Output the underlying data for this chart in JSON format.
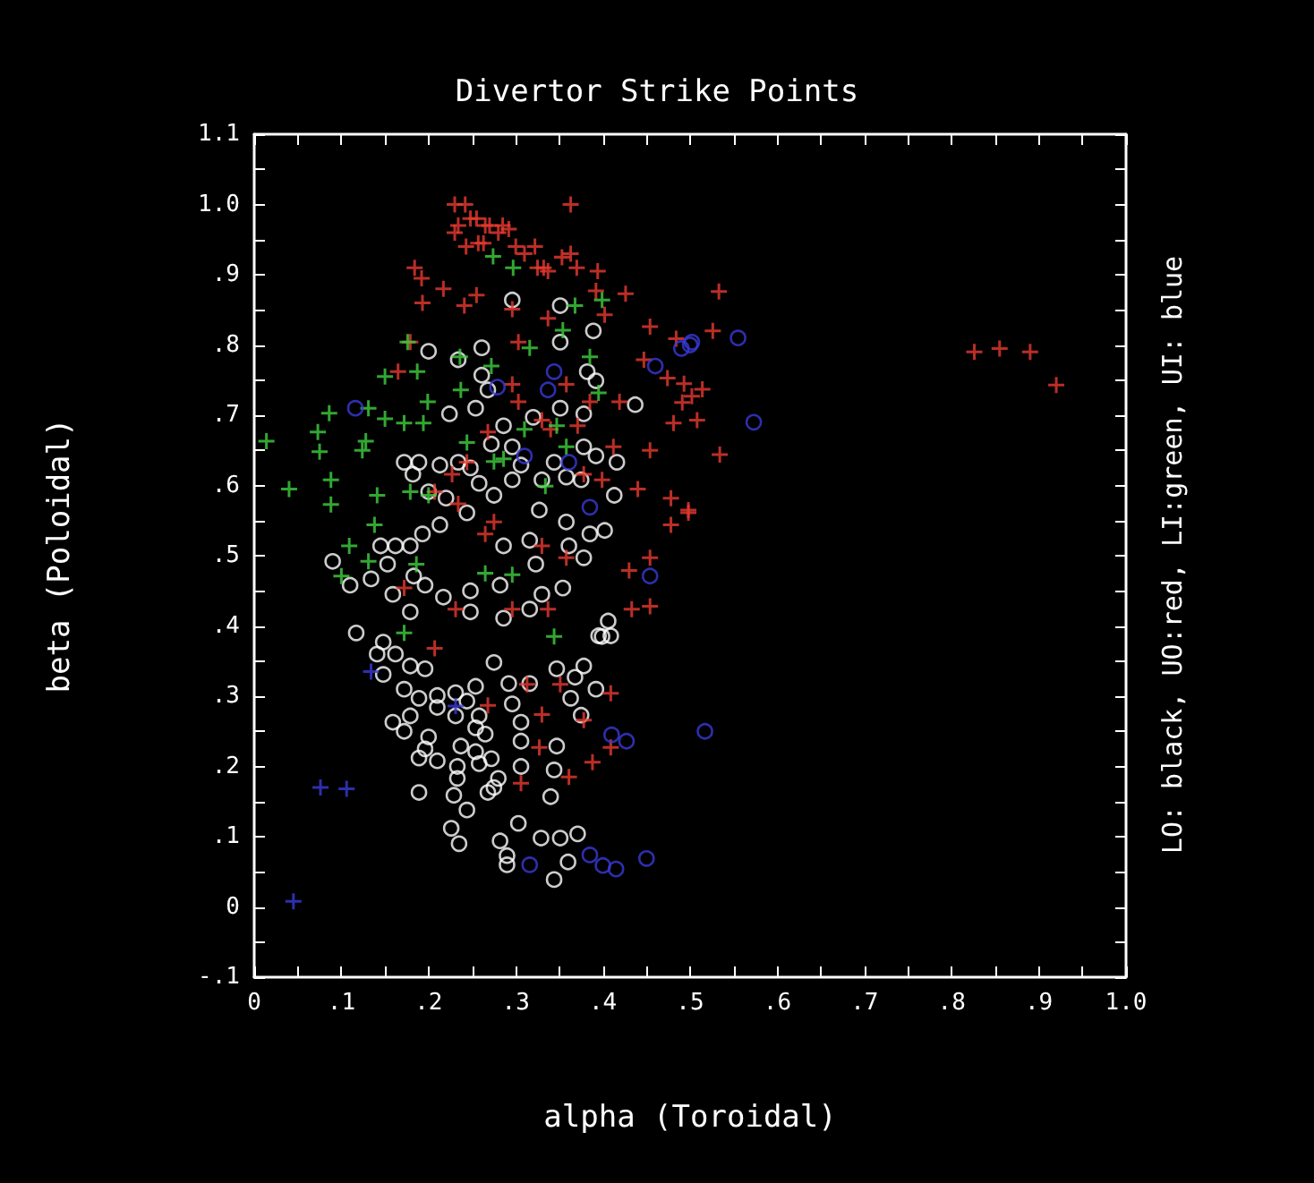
{
  "chart_data": {
    "type": "scatter",
    "title": "Divertor Strike Points",
    "xlabel": "alpha (Toroidal)",
    "ylabel": "beta (Poloidal)",
    "annotations": [
      "LO: black, UO:red, LI:green, UI: blue"
    ],
    "xlim": [
      0,
      1.0
    ],
    "ylim": [
      -0.1,
      1.1
    ],
    "xticks": [
      0,
      {
        "value": 0.05,
        "label": null
      },
      {
        "value": 0.1,
        "label": ".1"
      },
      {
        "value": 0.15,
        "label": null
      },
      {
        "value": 0.2,
        "label": ".2"
      },
      {
        "value": 0.25,
        "label": null
      },
      {
        "value": 0.3,
        "label": ".3"
      },
      {
        "value": 0.35,
        "label": null
      },
      {
        "value": 0.4,
        "label": ".4"
      },
      {
        "value": 0.45,
        "label": null
      },
      {
        "value": 0.5,
        "label": ".5"
      },
      {
        "value": 0.55,
        "label": null
      },
      {
        "value": 0.6,
        "label": ".6"
      },
      {
        "value": 0.65,
        "label": null
      },
      {
        "value": 0.7,
        "label": ".7"
      },
      {
        "value": 0.75,
        "label": null
      },
      {
        "value": 0.8,
        "label": ".8"
      },
      {
        "value": 0.85,
        "label": null
      },
      {
        "value": 0.9,
        "label": ".9"
      },
      {
        "value": 0.95,
        "label": null
      },
      {
        "value": 1.0,
        "label": "1.0"
      }
    ],
    "yticks": [
      {
        "value": -0.1,
        "label": "-.1"
      },
      {
        "value": -0.05,
        "label": null
      },
      0,
      {
        "value": 0.05,
        "label": null
      },
      {
        "value": 0.1,
        "label": ".1"
      },
      {
        "value": 0.15,
        "label": null
      },
      {
        "value": 0.2,
        "label": ".2"
      },
      {
        "value": 0.25,
        "label": null
      },
      {
        "value": 0.3,
        "label": ".3"
      },
      {
        "value": 0.35,
        "label": null
      },
      {
        "value": 0.4,
        "label": ".4"
      },
      {
        "value": 0.45,
        "label": null
      },
      {
        "value": 0.5,
        "label": ".5"
      },
      {
        "value": 0.55,
        "label": null
      },
      {
        "value": 0.6,
        "label": ".6"
      },
      {
        "value": 0.65,
        "label": null
      },
      {
        "value": 0.7,
        "label": ".7"
      },
      {
        "value": 0.75,
        "label": null
      },
      {
        "value": 0.8,
        "label": ".8"
      },
      {
        "value": 0.85,
        "label": null
      },
      {
        "value": 0.9,
        "label": ".9"
      },
      {
        "value": 0.95,
        "label": null
      },
      {
        "value": 1.0,
        "label": "1.0"
      },
      {
        "value": 1.05,
        "label": null
      },
      {
        "value": 1.1,
        "label": "1.1"
      }
    ],
    "series": [
      {
        "color": "#ffffff",
        "marker": "circle",
        "x": [
          0.2,
          0.261,
          0.296,
          0.351,
          0.351,
          0.234,
          0.261,
          0.268,
          0.254,
          0.224,
          0.286,
          0.32,
          0.351,
          0.382,
          0.392,
          0.437,
          0.378,
          0.272,
          0.296,
          0.378,
          0.416,
          0.172,
          0.189,
          0.213,
          0.234,
          0.182,
          0.248,
          0.258,
          0.296,
          0.33,
          0.358,
          0.375,
          0.392,
          0.413,
          0.2,
          0.22,
          0.244,
          0.213,
          0.193,
          0.179,
          0.145,
          0.162,
          0.09,
          0.11,
          0.134,
          0.153,
          0.183,
          0.196,
          0.159,
          0.217,
          0.248,
          0.286,
          0.316,
          0.327,
          0.358,
          0.385,
          0.402,
          0.378,
          0.354,
          0.33,
          0.282,
          0.248,
          0.286,
          0.316,
          0.179,
          0.117,
          0.406,
          0.399,
          0.275,
          0.306,
          0.344,
          0.361,
          0.323,
          0.148,
          0.141,
          0.162,
          0.179,
          0.148,
          0.196,
          0.172,
          0.189,
          0.21,
          0.231,
          0.244,
          0.231,
          0.21,
          0.159,
          0.179,
          0.172,
          0.2,
          0.196,
          0.189,
          0.21,
          0.237,
          0.254,
          0.272,
          0.258,
          0.254,
          0.265,
          0.258,
          0.233,
          0.233,
          0.189,
          0.229,
          0.275,
          0.268,
          0.28,
          0.244,
          0.226,
          0.235,
          0.254,
          0.275,
          0.292,
          0.316,
          0.296,
          0.306,
          0.306,
          0.306,
          0.347,
          0.344,
          0.34,
          0.303,
          0.282,
          0.29,
          0.29,
          0.329,
          0.351,
          0.371,
          0.36,
          0.344,
          0.363,
          0.375,
          0.392,
          0.368,
          0.378,
          0.347,
          0.395,
          0.409,
          0.389
        ],
        "values": [
          0.791,
          0.796,
          0.864,
          0.856,
          0.804,
          0.779,
          0.757,
          0.736,
          0.71,
          0.702,
          0.685,
          0.697,
          0.71,
          0.762,
          0.749,
          0.715,
          0.702,
          0.659,
          0.655,
          0.655,
          0.633,
          0.633,
          0.633,
          0.629,
          0.633,
          0.616,
          0.625,
          0.603,
          0.608,
          0.608,
          0.612,
          0.608,
          0.642,
          0.586,
          0.591,
          0.582,
          0.561,
          0.544,
          0.531,
          0.514,
          0.514,
          0.514,
          0.492,
          0.458,
          0.467,
          0.488,
          0.471,
          0.458,
          0.445,
          0.441,
          0.45,
          0.514,
          0.522,
          0.565,
          0.548,
          0.531,
          0.536,
          0.497,
          0.454,
          0.445,
          0.458,
          0.42,
          0.411,
          0.424,
          0.42,
          0.39,
          0.407,
          0.385,
          0.586,
          0.629,
          0.633,
          0.514,
          0.488,
          0.377,
          0.36,
          0.36,
          0.343,
          0.331,
          0.339,
          0.31,
          0.297,
          0.301,
          0.305,
          0.293,
          0.272,
          0.284,
          0.263,
          0.272,
          0.25,
          0.242,
          0.225,
          0.212,
          0.208,
          0.229,
          0.221,
          0.211,
          0.204,
          0.255,
          0.246,
          0.272,
          0.2,
          0.183,
          0.163,
          0.159,
          0.17,
          0.163,
          0.183,
          0.138,
          0.112,
          0.09,
          0.314,
          0.348,
          0.318,
          0.318,
          0.289,
          0.263,
          0.236,
          0.2,
          0.229,
          0.195,
          0.157,
          0.119,
          0.094,
          0.073,
          0.06,
          0.098,
          0.098,
          0.104,
          0.064,
          0.039,
          0.297,
          0.273,
          0.31,
          0.327,
          0.343,
          0.339,
          0.386,
          0.386,
          0.82
        ]
      },
      {
        "color": "#e8392f",
        "marker": "cross",
        "x": [
          0.193,
          0.217,
          0.255,
          0.179,
          0.241,
          0.296,
          0.303,
          0.337,
          0.392,
          0.402,
          0.426,
          0.454,
          0.484,
          0.447,
          0.474,
          0.502,
          0.481,
          0.454,
          0.478,
          0.498,
          0.44,
          0.478,
          0.454,
          0.43,
          0.454,
          0.433,
          0.399,
          0.371,
          0.412,
          0.34,
          0.296,
          0.268,
          0.244,
          0.227,
          0.165,
          0.207,
          0.265,
          0.275,
          0.234,
          0.33,
          0.358,
          0.172,
          0.231,
          0.337,
          0.296,
          0.378,
          0.385,
          0.33,
          0.303,
          0.358,
          0.419,
          0.207,
          0.268,
          0.306,
          0.327,
          0.33,
          0.388,
          0.409,
          0.361,
          0.378,
          0.409,
          0.351,
          0.313,
          0.23,
          0.242,
          0.248,
          0.255,
          0.23,
          0.234,
          0.265,
          0.27,
          0.28,
          0.285,
          0.292,
          0.257,
          0.263,
          0.243,
          0.3,
          0.31,
          0.322,
          0.325,
          0.332,
          0.337,
          0.353,
          0.363,
          0.363,
          0.37,
          0.394,
          0.184,
          0.192,
          0.526,
          0.493,
          0.514,
          0.491,
          0.508,
          0.534,
          0.498,
          0.533,
          0.826,
          0.855,
          0.89,
          0.92
        ],
        "values": [
          0.86,
          0.88,
          0.871,
          0.804,
          0.856,
          0.851,
          0.804,
          0.838,
          0.877,
          0.843,
          0.873,
          0.826,
          0.809,
          0.779,
          0.753,
          0.727,
          0.689,
          0.65,
          0.582,
          0.565,
          0.595,
          0.544,
          0.497,
          0.479,
          0.428,
          0.424,
          0.608,
          0.685,
          0.655,
          0.68,
          0.744,
          0.676,
          0.633,
          0.616,
          0.762,
          0.591,
          0.531,
          0.548,
          0.574,
          0.514,
          0.497,
          0.454,
          0.424,
          0.424,
          0.424,
          0.616,
          0.719,
          0.693,
          0.719,
          0.744,
          0.719,
          0.368,
          0.287,
          0.176,
          0.227,
          0.274,
          0.206,
          0.227,
          0.185,
          0.266,
          0.304,
          0.317,
          0.317,
          1.0,
          1.0,
          0.98,
          0.98,
          0.96,
          0.97,
          0.97,
          0.97,
          0.96,
          0.97,
          0.965,
          0.945,
          0.945,
          0.94,
          0.94,
          0.93,
          0.94,
          0.91,
          0.91,
          0.905,
          0.925,
          1.0,
          0.93,
          0.91,
          0.905,
          0.91,
          0.895,
          0.82,
          0.745,
          0.737,
          0.718,
          0.693,
          0.644,
          0.561,
          0.876,
          0.79,
          0.795,
          0.79,
          0.743
        ]
      },
      {
        "color": "#3fd13f",
        "marker": "cross",
        "x": [
          0.014,
          0.04,
          0.073,
          0.075,
          0.086,
          0.088,
          0.088,
          0.124,
          0.128,
          0.131,
          0.15,
          0.15,
          0.176,
          0.187,
          0.172,
          0.199,
          0.194,
          0.141,
          0.138,
          0.109,
          0.1,
          0.131,
          0.179,
          0.236,
          0.237,
          0.244,
          0.272,
          0.286,
          0.296,
          0.265,
          0.31,
          0.316,
          0.347,
          0.354,
          0.358,
          0.385,
          0.395,
          0.368,
          0.399,
          0.334,
          0.2,
          0.186,
          0.275,
          0.274,
          0.297,
          0.172,
          0.344
        ],
        "values": [
          0.663,
          0.595,
          0.676,
          0.648,
          0.703,
          0.608,
          0.573,
          0.65,
          0.663,
          0.71,
          0.695,
          0.755,
          0.804,
          0.762,
          0.689,
          0.719,
          0.689,
          0.586,
          0.544,
          0.514,
          0.471,
          0.492,
          0.591,
          0.783,
          0.736,
          0.661,
          0.77,
          0.638,
          0.473,
          0.475,
          0.68,
          0.796,
          0.685,
          0.821,
          0.655,
          0.783,
          0.732,
          0.856,
          0.864,
          0.599,
          0.586,
          0.488,
          0.634,
          0.926,
          0.91,
          0.39,
          0.385
        ]
      },
      {
        "color": "#3a3ad8",
        "marker": "circle",
        "x": [
          0.316,
          0.385,
          0.4,
          0.415,
          0.45,
          0.41,
          0.427,
          0.517,
          0.555,
          0.573,
          0.5,
          0.49,
          0.279,
          0.337,
          0.361,
          0.385,
          0.46,
          0.502,
          0.454,
          0.31,
          0.344,
          0.116
        ],
        "values": [
          0.06,
          0.074,
          0.059,
          0.054,
          0.069,
          0.245,
          0.236,
          0.25,
          0.81,
          0.69,
          0.8,
          0.795,
          0.74,
          0.736,
          0.633,
          0.569,
          0.77,
          0.804,
          0.471,
          0.642,
          0.762,
          0.71
        ]
      },
      {
        "color": "#3a3ad8",
        "marker": "cross",
        "x": [
          0.045,
          0.076,
          0.106,
          0.134,
          0.231
        ],
        "values": [
          0.008,
          0.17,
          0.168,
          0.335,
          0.286
        ]
      }
    ]
  }
}
